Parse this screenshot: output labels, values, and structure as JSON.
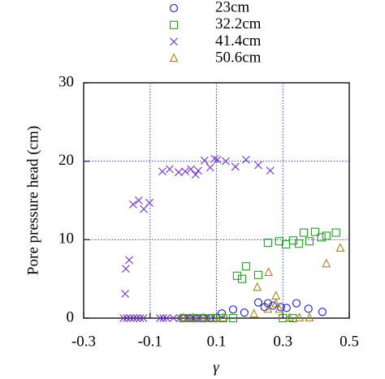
{
  "chart_data": {
    "type": "scatter",
    "x_label": "γ",
    "y_label": "Pore pressure head (cm)",
    "xlim": [
      -0.3,
      0.5
    ],
    "ylim": [
      0,
      30
    ],
    "xticks": [
      -0.3,
      -0.1,
      0.1,
      0.3,
      0.5
    ],
    "yticks": [
      0,
      10,
      20,
      30
    ],
    "grid": true,
    "series": [
      {
        "name": "23cm",
        "color": "#1a1acc",
        "marker": "circle",
        "x": [
          0.0,
          0.02,
          0.04,
          0.06,
          0.08,
          0.1,
          0.116,
          0.15,
          0.184,
          0.226,
          0.245,
          0.255,
          0.27,
          0.294,
          0.311,
          0.341,
          0.377,
          0.419
        ],
        "values": [
          0,
          0,
          0,
          0,
          0,
          0,
          0.6,
          1.1,
          0.7,
          2.0,
          1.4,
          1.9,
          1.6,
          1.4,
          1.3,
          1.9,
          1.2,
          0.8
        ]
      },
      {
        "name": "32.2cm",
        "color": "#22a022",
        "marker": "square",
        "x": [
          0.0,
          0.03,
          0.06,
          0.09,
          0.12,
          0.15,
          0.162,
          0.177,
          0.189,
          0.226,
          0.255,
          0.289,
          0.309,
          0.331,
          0.348,
          0.363,
          0.38,
          0.397,
          0.416,
          0.431,
          0.46,
          0.3,
          0.33
        ],
        "values": [
          0,
          0,
          0,
          0,
          0,
          0,
          5.4,
          5.0,
          6.6,
          5.5,
          9.6,
          9.8,
          9.4,
          9.9,
          9.5,
          10.9,
          9.8,
          11.0,
          10.3,
          10.5,
          10.9,
          0,
          0
        ]
      },
      {
        "name": "41.4cm",
        "color": "#7030d0",
        "marker": "cross",
        "x": [
          -0.175,
          -0.173,
          -0.163,
          -0.151,
          -0.134,
          -0.119,
          -0.102,
          -0.063,
          -0.041,
          -0.014,
          0.006,
          0.023,
          0.037,
          0.045,
          0.064,
          0.081,
          0.094,
          0.103,
          0.128,
          0.157,
          0.189,
          0.226,
          0.262,
          -0.18,
          -0.17,
          -0.16,
          -0.15,
          -0.14,
          -0.13,
          -0.12,
          -0.07,
          -0.06,
          -0.05,
          -0.03,
          -0.01,
          0.01,
          0.03,
          0.05,
          0.07
        ],
        "values": [
          3.1,
          6.3,
          7.4,
          14.5,
          15.0,
          13.9,
          14.7,
          18.7,
          19.0,
          18.6,
          18.7,
          19.0,
          18.3,
          18.8,
          20.1,
          19.2,
          20.3,
          20.2,
          20.0,
          19.3,
          20.2,
          19.5,
          18.8,
          0,
          0,
          0,
          0,
          0,
          0,
          0,
          0,
          0,
          0,
          0,
          0,
          0,
          0,
          0,
          0
        ]
      },
      {
        "name": "50.6cm",
        "color": "#a88420",
        "marker": "triangle",
        "x": [
          0.0,
          0.03,
          0.06,
          0.09,
          0.12,
          0.213,
          0.223,
          0.255,
          0.257,
          0.279,
          0.279,
          0.289,
          0.32,
          0.35,
          0.38,
          0.431,
          0.473
        ],
        "values": [
          0,
          0,
          0,
          0,
          0,
          0.5,
          3.9,
          1.1,
          5.8,
          2.8,
          1.8,
          1.1,
          0,
          0,
          0,
          6.9,
          8.9
        ]
      }
    ]
  }
}
